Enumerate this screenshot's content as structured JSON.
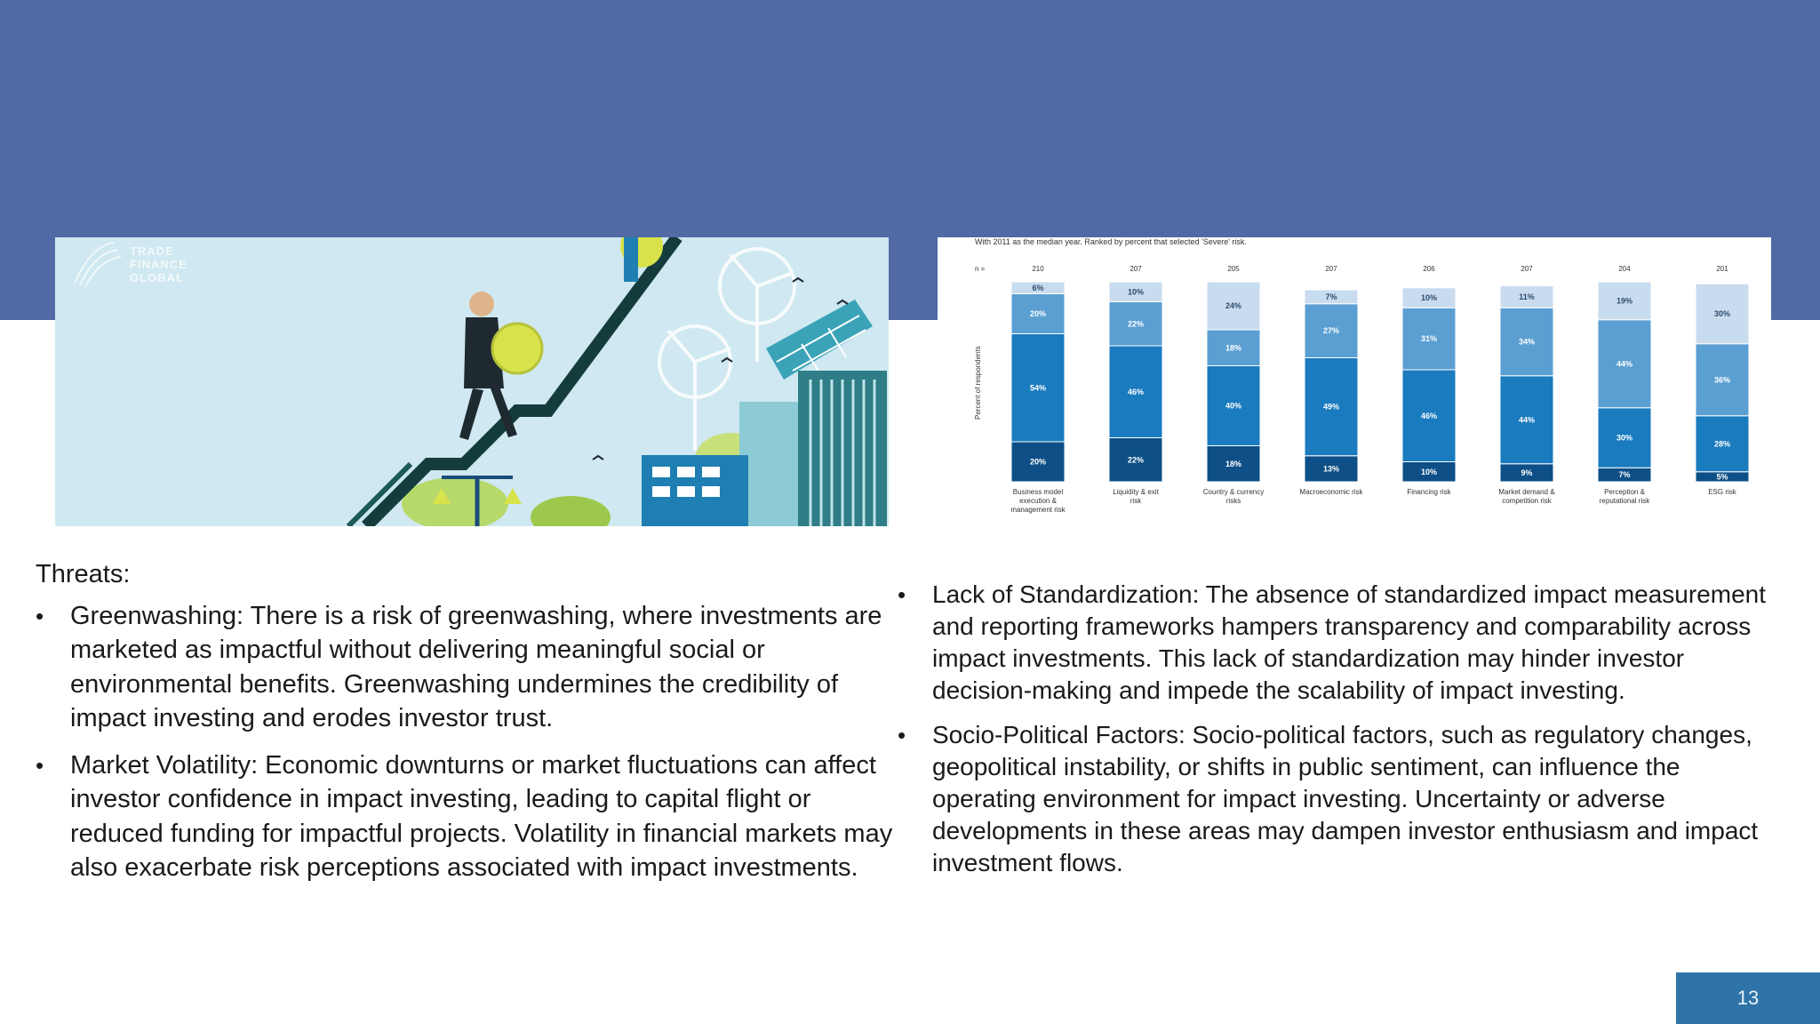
{
  "slide": {
    "page_number": "13",
    "colors": {
      "header_band": "#5169a5",
      "page_number_box": "#2e74a8"
    }
  },
  "left_image": {
    "logo": [
      "TRADE",
      "FINANCE",
      "GLOBAL"
    ],
    "icons": [
      "businessman-climbing-icon",
      "gold-coin-icon",
      "wind-turbine-icon",
      "solar-building-icon",
      "balance-scale-icon"
    ]
  },
  "chart_data": {
    "type": "bar",
    "stacked": true,
    "orientation": "vertical",
    "note": "With 2011 as the median year. Ranked by percent that selected 'Severe' risk.",
    "ylabel": "Percent of respondents",
    "n_label": "n =",
    "n_values": [
      "210",
      "207",
      "205",
      "207",
      "206",
      "207",
      "204",
      "201"
    ],
    "categories": [
      "Business model execution & management risk",
      "Liquidity & exit risk",
      "Country & currency risks",
      "Macroeconomic risk",
      "Financing risk",
      "Market demand & competition risk",
      "Perception & reputational risk",
      "ESG risk"
    ],
    "series": [
      {
        "values": [
          20,
          22,
          18,
          13,
          10,
          9,
          7,
          5
        ],
        "color": "#0d4f86"
      },
      {
        "values": [
          54,
          46,
          40,
          49,
          46,
          44,
          30,
          28
        ],
        "color": "#1a7bbf"
      },
      {
        "values": [
          20,
          22,
          18,
          27,
          31,
          34,
          44,
          36
        ],
        "color": "#5b9fd2"
      },
      {
        "values": [
          6,
          10,
          24,
          7,
          10,
          11,
          19,
          30
        ],
        "color": "#c9dcef"
      }
    ],
    "ylim": [
      0,
      100
    ],
    "grid": false,
    "legend": "none"
  },
  "threats": {
    "heading": "Threats:",
    "left_items": [
      "Greenwashing: There is a risk of greenwashing, where investments are marketed as impactful without delivering meaningful social or environmental benefits. Greenwashing undermines the credibility of impact investing and erodes investor trust.",
      "Market Volatility: Economic downturns or market fluctuations can affect investor confidence in impact investing, leading to capital flight or reduced funding for impactful projects. Volatility in financial markets may also exacerbate risk perceptions associated with impact investments."
    ],
    "right_items": [
      "Lack of Standardization: The absence of standardized impact measurement and reporting frameworks hampers transparency and comparability across impact investments. This lack of standardization may hinder investor decision-making and impede the scalability of impact investing.",
      "Socio-Political Factors: Socio-political factors, such as regulatory changes, geopolitical instability, or shifts in public sentiment, can influence the operating environment for impact investing. Uncertainty or adverse developments in these areas may dampen investor enthusiasm and impact investment flows."
    ],
    "bullet": "•"
  }
}
